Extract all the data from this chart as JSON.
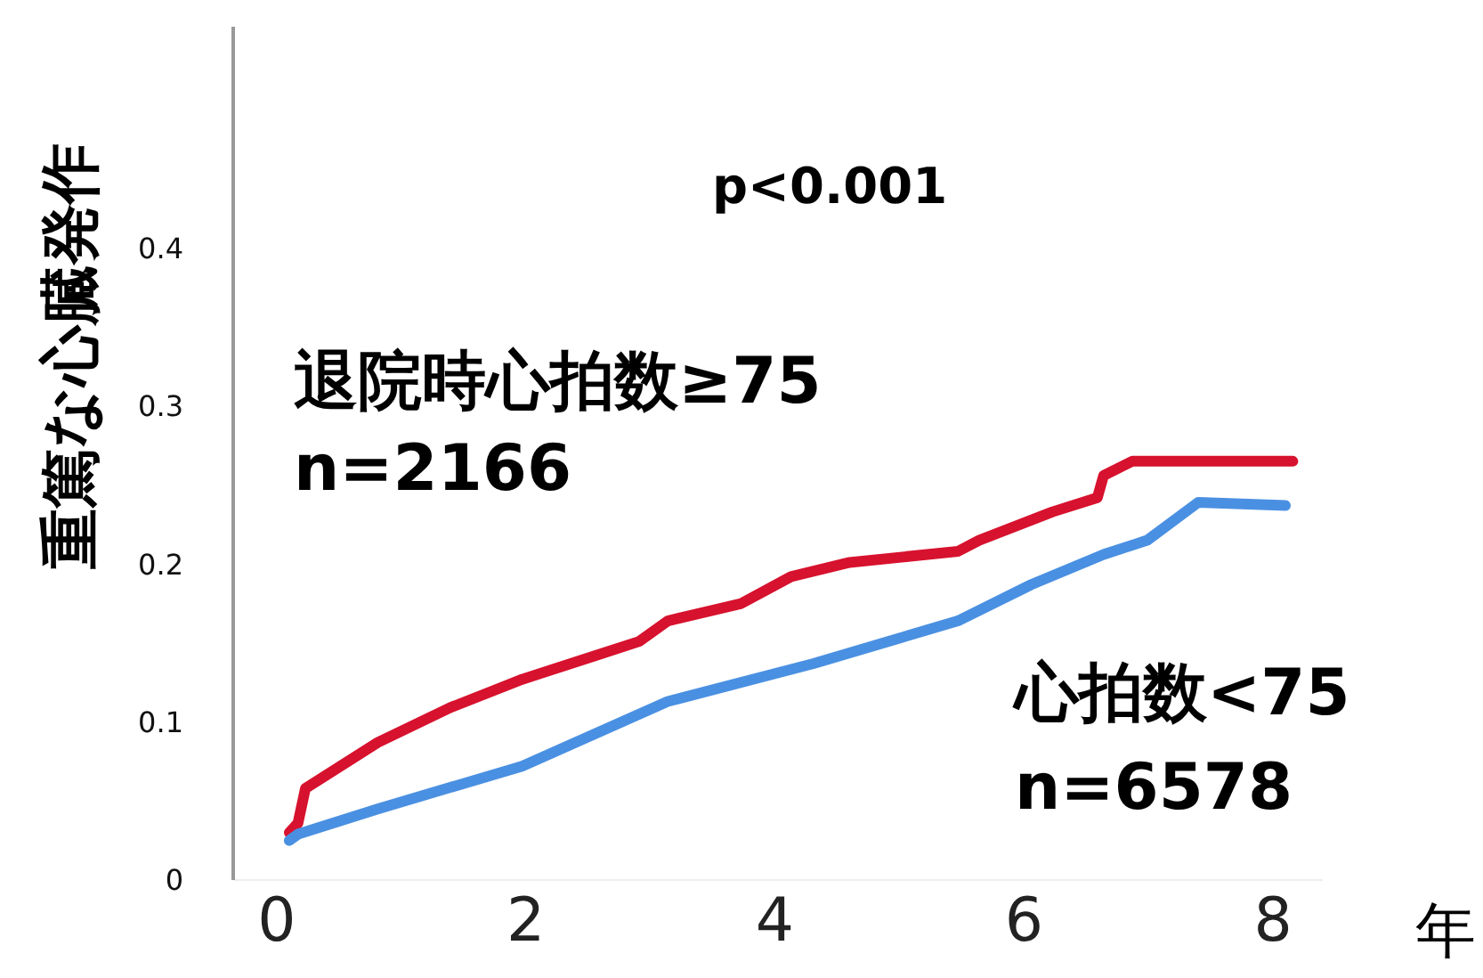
{
  "chart_data": {
    "type": "line",
    "ylabel": "重篤な心臓発作",
    "xlabel": "年",
    "annotations": [
      "p<0.001",
      "n=2166",
      "n=6578"
    ],
    "xlim": [
      -0.35,
      8.4
    ],
    "xticks": [
      0,
      2,
      4,
      6,
      8
    ],
    "ylim": [
      0,
      0.54
    ],
    "yticks": [
      0,
      0.1,
      0.2,
      0.3,
      0.4
    ],
    "grid": false,
    "line_style": "solid",
    "series": [
      {
        "name": "退院時心拍数≥75",
        "color": "#d7122e",
        "x": [
          0.1,
          0.17,
          0.23,
          0.81,
          1.39,
          1.97,
          2.56,
          2.91,
          3.14,
          3.73,
          4.13,
          4.6,
          5.47,
          5.64,
          6.23,
          6.59,
          6.64,
          6.87,
          8.16
        ],
        "values": [
          0.03,
          0.036,
          0.058,
          0.087,
          0.109,
          0.127,
          0.142,
          0.151,
          0.164,
          0.175,
          0.192,
          0.201,
          0.208,
          0.215,
          0.233,
          0.242,
          0.256,
          0.265,
          0.265
        ]
      },
      {
        "name": "心拍数<75",
        "color": "#4a90e2",
        "x": [
          0.1,
          0.17,
          0.81,
          1.97,
          3.14,
          4.31,
          5.47,
          6.06,
          6.64,
          6.99,
          7.4,
          8.1
        ],
        "values": [
          0.025,
          0.029,
          0.045,
          0.072,
          0.113,
          0.137,
          0.164,
          0.187,
          0.206,
          0.215,
          0.239,
          0.237
        ]
      }
    ]
  }
}
